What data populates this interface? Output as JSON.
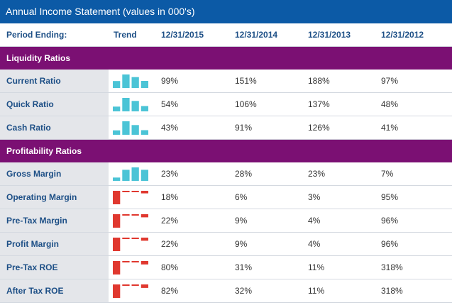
{
  "title": "Annual Income Statement (values in 000's)",
  "header": {
    "period_label": "Period Ending:",
    "trend_label": "Trend",
    "periods": [
      "12/31/2015",
      "12/31/2014",
      "12/31/2013",
      "12/31/2012"
    ]
  },
  "colors": {
    "title_bg": "#0c5aa6",
    "section_bg": "#7b1073",
    "positive": "#4bc4d6",
    "negative": "#e0382f"
  },
  "sections": [
    {
      "name": "Liquidity Ratios",
      "rows": [
        {
          "label": "Current Ratio",
          "values": [
            "99%",
            "151%",
            "188%",
            "97%"
          ],
          "trend": [
            99,
            151,
            188,
            97
          ]
        },
        {
          "label": "Quick Ratio",
          "values": [
            "54%",
            "106%",
            "137%",
            "48%"
          ],
          "trend": [
            54,
            106,
            137,
            48
          ]
        },
        {
          "label": "Cash Ratio",
          "values": [
            "43%",
            "91%",
            "126%",
            "41%"
          ],
          "trend": [
            43,
            91,
            126,
            41
          ]
        }
      ]
    },
    {
      "name": "Profitability Ratios",
      "rows": [
        {
          "label": "Gross Margin",
          "values": [
            "23%",
            "28%",
            "23%",
            "7%"
          ],
          "trend": [
            23,
            28,
            23,
            7
          ]
        },
        {
          "label": "Operating Margin",
          "values": [
            "18%",
            "6%",
            "3%",
            "95%"
          ],
          "trend": [
            -18,
            -6,
            -3,
            -95
          ]
        },
        {
          "label": "Pre-Tax Margin",
          "values": [
            "22%",
            "9%",
            "4%",
            "96%"
          ],
          "trend": [
            -22,
            -9,
            -4,
            -96
          ]
        },
        {
          "label": "Profit Margin",
          "values": [
            "22%",
            "9%",
            "4%",
            "96%"
          ],
          "trend": [
            -22,
            -9,
            -4,
            -96
          ]
        },
        {
          "label": "Pre-Tax ROE",
          "values": [
            "80%",
            "31%",
            "11%",
            "318%"
          ],
          "trend": [
            -80,
            -31,
            -11,
            -318
          ]
        },
        {
          "label": "After Tax ROE",
          "values": [
            "82%",
            "32%",
            "11%",
            "318%"
          ],
          "trend": [
            -82,
            -32,
            -11,
            -318
          ]
        }
      ]
    }
  ]
}
